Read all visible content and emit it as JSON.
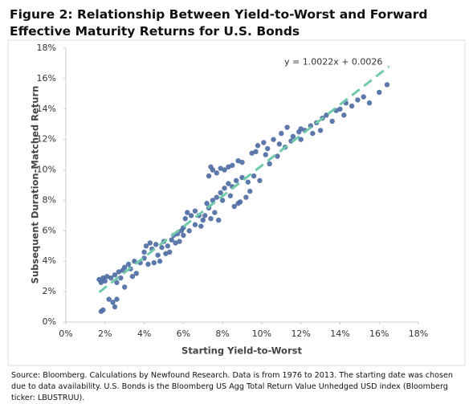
{
  "chart_data": {
    "type": "scatter",
    "title": "Figure 2: Relationship Between Yield-to-Worst and Forward Effective Maturity Returns for U.S. Bonds",
    "x_label": "Starting Yield-to-Worst",
    "y_label": "Subsequent  Duration-Matched Return",
    "source": "Source: Bloomberg. Calculations by Newfound Research. Data is from 1976 to 2013. The starting date was chosen due to data availability. U.S. Bonds is the Bloomberg US Agg Total Return Value Unhedged USD index (Bloomberg ticker: LBUSTRUU).",
    "xlim": [
      0,
      18
    ],
    "ylim": [
      0,
      18
    ],
    "xticks": [
      {
        "value": 0,
        "label": "0%"
      },
      {
        "value": 2,
        "label": "2%"
      },
      {
        "value": 4,
        "label": "4%"
      },
      {
        "value": 6,
        "label": "6%"
      },
      {
        "value": 8,
        "label": "8%"
      },
      {
        "value": 10,
        "label": "10%"
      },
      {
        "value": 12,
        "label": "12%"
      },
      {
        "value": 14,
        "label": "14%"
      },
      {
        "value": 16,
        "label": "16%"
      },
      {
        "value": 18,
        "label": "18%"
      }
    ],
    "yticks": [
      {
        "value": 0,
        "label": "0%"
      },
      {
        "value": 2,
        "label": "2%"
      },
      {
        "value": 4,
        "label": "4%"
      },
      {
        "value": 6,
        "label": "6%"
      },
      {
        "value": 8,
        "label": "8%"
      },
      {
        "value": 10,
        "label": "10%"
      },
      {
        "value": 12,
        "label": "12%"
      },
      {
        "value": 14,
        "label": "14%"
      },
      {
        "value": 16,
        "label": "16%"
      },
      {
        "value": 18,
        "label": "18%"
      }
    ],
    "grid": false,
    "color": "#4b6aa3",
    "x": [
      1.8,
      1.9,
      2.2,
      2.4,
      2.6,
      2.5,
      1.7,
      1.8,
      1.9,
      2.0,
      2.1,
      2.3,
      2.5,
      2.7,
      2.9,
      2.6,
      2.8,
      3.0,
      3.2,
      3.3,
      3.5,
      3.6,
      3.8,
      3.0,
      3.4,
      4.0,
      4.1,
      4.3,
      4.4,
      4.6,
      4.7,
      4.9,
      5.0,
      4.2,
      4.5,
      4.8,
      5.1,
      4.0,
      5.2,
      5.4,
      5.5,
      5.7,
      5.9,
      5.3,
      5.6,
      5.8,
      6.0,
      6.1,
      6.2,
      6.4,
      6.6,
      6.8,
      6.0,
      6.3,
      6.6,
      6.9,
      7.0,
      7.1,
      7.3,
      7.5,
      7.7,
      7.4,
      7.6,
      7.8,
      7.2,
      7.3,
      7.5,
      7.7,
      7.9,
      8.1,
      8.3,
      8.5,
      8.8,
      9.0,
      7.4,
      7.9,
      8.1,
      8.3,
      8.5,
      8.7,
      9.0,
      9.3,
      9.6,
      9.9,
      8.0,
      8.4,
      8.6,
      8.9,
      9.2,
      9.4,
      8.8,
      9.5,
      9.8,
      10.1,
      10.3,
      10.6,
      10.9,
      9.7,
      10.2,
      10.4,
      10.8,
      11.0,
      11.3,
      11.6,
      11.9,
      11.2,
      11.5,
      12.0,
      12.2,
      12.5,
      12.8,
      13.1,
      13.3,
      13.6,
      12.0,
      13.0,
      12.6,
      14.0,
      14.3,
      14.6,
      14.9,
      15.2,
      15.5,
      16.0,
      16.4,
      14.2,
      13.8
    ],
    "values": [
      0.7,
      0.8,
      1.5,
      1.3,
      1.5,
      1.0,
      2.8,
      2.6,
      2.9,
      2.7,
      3.0,
      2.9,
      3.1,
      3.3,
      3.4,
      2.6,
      2.9,
      3.6,
      3.8,
      3.5,
      4.0,
      3.2,
      3.9,
      2.3,
      3.0,
      4.6,
      5.0,
      5.2,
      4.8,
      5.1,
      4.4,
      4.9,
      5.3,
      3.8,
      3.9,
      4.0,
      4.5,
      4.2,
      5.0,
      5.4,
      5.7,
      5.8,
      6.0,
      4.6,
      5.2,
      5.3,
      6.2,
      6.8,
      7.2,
      7.0,
      7.3,
      7.0,
      5.7,
      6.0,
      6.4,
      6.3,
      6.7,
      7.0,
      7.5,
      8.0,
      8.2,
      6.8,
      7.2,
      6.7,
      7.8,
      9.6,
      10.0,
      9.8,
      10.1,
      10.0,
      10.2,
      10.3,
      10.6,
      10.5,
      10.2,
      8.5,
      8.8,
      9.1,
      8.9,
      9.3,
      9.5,
      9.2,
      9.6,
      9.3,
      8.0,
      8.3,
      7.6,
      7.9,
      8.2,
      8.6,
      7.8,
      11.1,
      11.6,
      11.8,
      11.4,
      12.0,
      11.7,
      11.2,
      11.0,
      10.4,
      10.9,
      12.4,
      12.8,
      12.2,
      12.5,
      11.5,
      11.9,
      12.0,
      12.6,
      12.9,
      13.1,
      13.4,
      13.6,
      13.2,
      12.7,
      12.6,
      12.4,
      14.0,
      14.4,
      14.2,
      14.6,
      14.8,
      14.4,
      15.1,
      15.6,
      13.6,
      13.9
    ],
    "trendline": {
      "label": "y = 1.0022x + 0.0026",
      "color": "#6fcaa9",
      "x": [
        1.7,
        16.5
      ],
      "values": [
        1.96,
        16.8
      ]
    }
  }
}
